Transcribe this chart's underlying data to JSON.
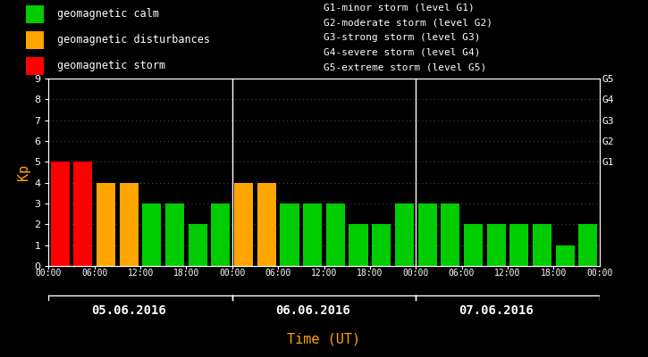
{
  "background_color": "#000000",
  "plot_bg_color": "#000000",
  "bar_values": [
    5,
    5,
    4,
    4,
    3,
    3,
    2,
    3,
    4,
    4,
    3,
    3,
    3,
    2,
    2,
    3,
    3,
    3,
    2,
    2,
    2,
    2,
    1,
    2
  ],
  "bar_colors": [
    "#ff0000",
    "#ff0000",
    "#ffa500",
    "#ffa500",
    "#00cc00",
    "#00cc00",
    "#00cc00",
    "#00cc00",
    "#ffa500",
    "#ffa500",
    "#00cc00",
    "#00cc00",
    "#00cc00",
    "#00cc00",
    "#00cc00",
    "#00cc00",
    "#00cc00",
    "#00cc00",
    "#00cc00",
    "#00cc00",
    "#00cc00",
    "#00cc00",
    "#00cc00",
    "#00cc00"
  ],
  "day_labels": [
    "05.06.2016",
    "06.06.2016",
    "07.06.2016"
  ],
  "time_labels": [
    "00:00",
    "06:00",
    "12:00",
    "18:00",
    "00:00",
    "06:00",
    "12:00",
    "18:00",
    "00:00",
    "06:00",
    "12:00",
    "18:00",
    "00:00"
  ],
  "ylabel": "Kp",
  "xlabel": "Time (UT)",
  "ylim": [
    0,
    9
  ],
  "yticks": [
    0,
    1,
    2,
    3,
    4,
    5,
    6,
    7,
    8,
    9
  ],
  "right_ytick_positions": [
    5,
    6,
    7,
    8,
    9
  ],
  "right_ytick_labels": [
    "G1",
    "G2",
    "G3",
    "G4",
    "G5"
  ],
  "legend_entries": [
    {
      "label": "geomagnetic calm",
      "color": "#00cc00"
    },
    {
      "label": "geomagnetic disturbances",
      "color": "#ffa500"
    },
    {
      "label": "geomagnetic storm",
      "color": "#ff0000"
    }
  ],
  "legend_text_color": "#ffffff",
  "right_legend_lines": [
    "G1-minor storm (level G1)",
    "G2-moderate storm (level G2)",
    "G3-strong storm (level G3)",
    "G4-severe storm (level G4)",
    "G5-extreme storm (level G5)"
  ],
  "axis_color": "#ffffff",
  "tick_color": "#ffffff",
  "grid_color": "#444444",
  "ylabel_color": "#ffa500",
  "xlabel_color": "#ffa500",
  "day_label_color": "#ffffff",
  "font_family": "monospace",
  "n_bars": 24,
  "bars_per_day": 8,
  "time_tick_bar_indices": [
    0,
    2,
    4,
    6,
    8,
    10,
    12,
    14,
    16,
    18,
    20,
    22,
    24
  ],
  "day_dividers": [
    8,
    16
  ]
}
